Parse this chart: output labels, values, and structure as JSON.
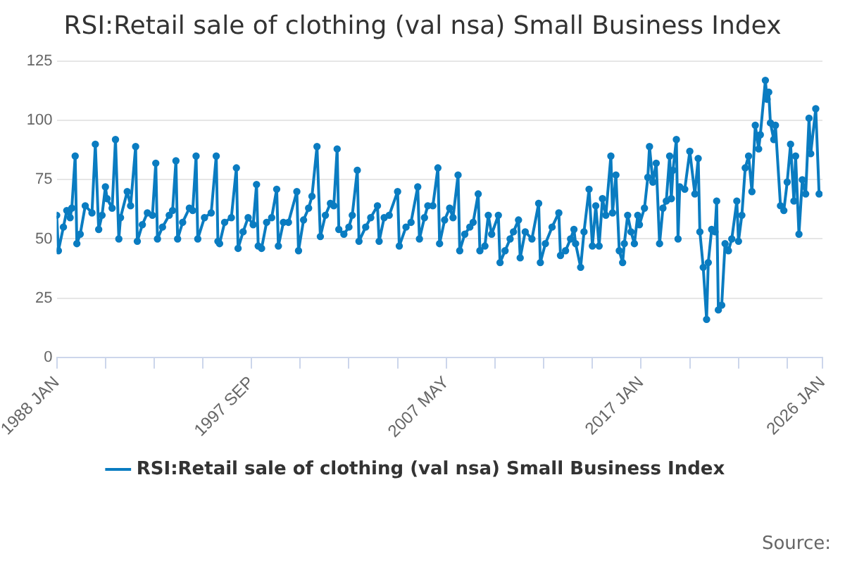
{
  "chart_data": {
    "type": "line",
    "title": "RSI:Retail sale of clothing (val nsa) Small Business Index",
    "annotations": [
      "Source:"
    ],
    "legend": "bottom",
    "grid": "y",
    "marker": "circle",
    "line_style": "solid",
    "xlim": [
      "1988-01",
      "2026-01"
    ],
    "xticks": [
      {
        "value": "1988-01",
        "label": "1988 JAN"
      },
      {
        "value": "1990-06",
        "label": null
      },
      {
        "value": "1992-11",
        "label": null
      },
      {
        "value": "1995-04",
        "label": null
      },
      {
        "value": "1997-09",
        "label": "1997 SEP"
      },
      {
        "value": "2000-02",
        "label": null
      },
      {
        "value": "2002-07",
        "label": null
      },
      {
        "value": "2004-12",
        "label": null
      },
      {
        "value": "2007-05",
        "label": "2007 MAY"
      },
      {
        "value": "2009-10",
        "label": null
      },
      {
        "value": "2012-03",
        "label": null
      },
      {
        "value": "2014-08",
        "label": null
      },
      {
        "value": "2017-01",
        "label": "2017 JAN"
      },
      {
        "value": "2019-06",
        "label": null
      },
      {
        "value": "2021-11",
        "label": null
      },
      {
        "value": "2024-04",
        "label": null
      },
      {
        "value": "2026-01",
        "label": "2026 JAN"
      }
    ],
    "ylim": [
      0,
      125
    ],
    "yticks": [
      0,
      25,
      50,
      75,
      100,
      125
    ],
    "series": [
      {
        "name": "RSI:Retail sale of clothing (val nsa) Small Business Index",
        "color": "#0a7cc1",
        "x": [
          "1988-01",
          "1988-02",
          "1988-05",
          "1988-07",
          "1988-09",
          "1988-10",
          "1988-12",
          "1989-01",
          "1989-03",
          "1989-06",
          "1989-10",
          "1989-12",
          "1990-02",
          "1990-04",
          "1990-06",
          "1990-07",
          "1990-10",
          "1990-12",
          "1991-02",
          "1991-03",
          "1991-07",
          "1991-09",
          "1991-12",
          "1992-01",
          "1992-04",
          "1992-07",
          "1992-10",
          "1992-12",
          "1993-01",
          "1993-04",
          "1993-08",
          "1993-10",
          "1993-12",
          "1994-01",
          "1994-04",
          "1994-08",
          "1994-10",
          "1994-12",
          "1995-01",
          "1995-05",
          "1995-09",
          "1995-12",
          "1996-01",
          "1996-02",
          "1996-05",
          "1996-09",
          "1996-12",
          "1997-01",
          "1997-04",
          "1997-07",
          "1997-10",
          "1997-12",
          "1998-01",
          "1998-03",
          "1998-06",
          "1998-09",
          "1998-12",
          "1999-01",
          "1999-04",
          "1999-07",
          "1999-12",
          "2000-01",
          "2000-04",
          "2000-07",
          "2000-09",
          "2000-12",
          "2001-02",
          "2001-05",
          "2001-08",
          "2001-10",
          "2001-12",
          "2002-01",
          "2002-04",
          "2002-07",
          "2002-09",
          "2002-12",
          "2003-01",
          "2003-05",
          "2003-08",
          "2003-12",
          "2004-01",
          "2004-04",
          "2004-07",
          "2004-12",
          "2005-01",
          "2005-05",
          "2005-08",
          "2005-12",
          "2006-01",
          "2006-04",
          "2006-06",
          "2006-09",
          "2006-12",
          "2007-01",
          "2007-04",
          "2007-07",
          "2007-09",
          "2007-12",
          "2008-01",
          "2008-04",
          "2008-07",
          "2008-09",
          "2008-12",
          "2009-01",
          "2009-04",
          "2009-06",
          "2009-08",
          "2009-12",
          "2010-01",
          "2010-04",
          "2010-07",
          "2010-09",
          "2010-12",
          "2011-01",
          "2011-04",
          "2011-08",
          "2011-12",
          "2012-01",
          "2012-04",
          "2012-08",
          "2012-12",
          "2013-01",
          "2013-04",
          "2013-07",
          "2013-09",
          "2013-10",
          "2014-01",
          "2014-03",
          "2014-06",
          "2014-08",
          "2014-10",
          "2014-12",
          "2015-02",
          "2015-04",
          "2015-07",
          "2015-08",
          "2015-10",
          "2015-12",
          "2016-02",
          "2016-03",
          "2016-05",
          "2016-07",
          "2016-09",
          "2016-11",
          "2016-12",
          "2017-03",
          "2017-05",
          "2017-06",
          "2017-08",
          "2017-10",
          "2017-12",
          "2018-02",
          "2018-04",
          "2018-06",
          "2018-07",
          "2018-08",
          "2018-10",
          "2018-11",
          "2018-12",
          "2019-03",
          "2019-06",
          "2019-09",
          "2019-11",
          "2019-12",
          "2020-02",
          "2020-04",
          "2020-05",
          "2020-07",
          "2020-09",
          "2020-10",
          "2020-11",
          "2021-01",
          "2021-03",
          "2021-05",
          "2021-07",
          "2021-10",
          "2021-11",
          "2022-01",
          "2022-03",
          "2022-05",
          "2022-07",
          "2022-09",
          "2022-11",
          "2022-12",
          "2023-03",
          "2023-04",
          "2023-05",
          "2023-06",
          "2023-08",
          "2023-09",
          "2023-12",
          "2024-02",
          "2024-04",
          "2024-06",
          "2024-08",
          "2024-09",
          "2024-11",
          "2025-01",
          "2025-03",
          "2025-05",
          "2025-06",
          "2025-09",
          "2025-11"
        ],
        "values": [
          60,
          45,
          55,
          62,
          59,
          63,
          85,
          48,
          52,
          64,
          61,
          90,
          54,
          60,
          72,
          67,
          63,
          92,
          50,
          59,
          70,
          64,
          89,
          49,
          56,
          61,
          60,
          82,
          50,
          55,
          60,
          62,
          83,
          50,
          57,
          63,
          62,
          85,
          50,
          59,
          61,
          85,
          49,
          48,
          57,
          59,
          80,
          46,
          53,
          59,
          56,
          73,
          47,
          46,
          57,
          59,
          71,
          47,
          57,
          57,
          70,
          45,
          58,
          63,
          68,
          89,
          51,
          60,
          65,
          64,
          88,
          54,
          52,
          55,
          60,
          79,
          49,
          55,
          59,
          64,
          49,
          59,
          60,
          70,
          47,
          55,
          57,
          72,
          50,
          59,
          64,
          64,
          80,
          48,
          58,
          63,
          59,
          77,
          45,
          52,
          55,
          57,
          69,
          45,
          47,
          60,
          52,
          60,
          40,
          45,
          50,
          53,
          58,
          42,
          53,
          50,
          65,
          40,
          48,
          55,
          61,
          43,
          45,
          50,
          54,
          48,
          38,
          53,
          71,
          47,
          64,
          47,
          67,
          60,
          85,
          61,
          77,
          45,
          40,
          48,
          60,
          53,
          48,
          60,
          56,
          63,
          76,
          89,
          74,
          82,
          48,
          63,
          66,
          85,
          67,
          79,
          92,
          50,
          72,
          71,
          87,
          69,
          84,
          53,
          38,
          16,
          40,
          54,
          53,
          66,
          20,
          22,
          48,
          45,
          50,
          66,
          49,
          60,
          80,
          85,
          70,
          98,
          88,
          94,
          117,
          109,
          112,
          99,
          92,
          98,
          64,
          62,
          74,
          90,
          66,
          85,
          52,
          75,
          69,
          101,
          86,
          105,
          69
        ]
      }
    ]
  }
}
